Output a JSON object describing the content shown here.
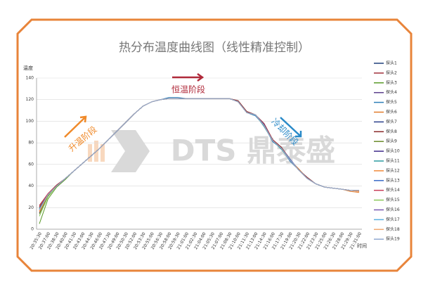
{
  "chart_data": {
    "type": "line",
    "title": "热分布温度曲线图（线性精准控制）",
    "y_label": "温度",
    "x_label": "时间",
    "annotations": [
      "升温阶段",
      "恒温阶段",
      "冷却阶段"
    ],
    "watermark": "DTS 鼎泰盛",
    "ylim": [
      0,
      140
    ],
    "yticks": [
      0,
      20,
      40,
      60,
      80,
      100,
      120,
      140
    ],
    "grid": true,
    "legend": "right",
    "categories": [
      "20:35:30",
      "20:37:00",
      "20:38:30",
      "20:40:00",
      "20:41:30",
      "20:43:00",
      "20:44:30",
      "20:46:00",
      "20:47:30",
      "20:49:00",
      "20:50:30",
      "20:52:00",
      "20:53:30",
      "20:55:00",
      "20:56:30",
      "20:58:00",
      "20:59:30",
      "21:01:00",
      "21:02:30",
      "21:04:00",
      "21:05:30",
      "21:07:00",
      "21:08:30",
      "21:10:00",
      "21:11:30",
      "21:13:00",
      "21:14:30",
      "21:16:00",
      "21:17:30",
      "21:19:00",
      "21:20:30",
      "21:22:00",
      "21:23:30",
      "21:25:00",
      "21:26:30",
      "21:28:00",
      "21:29:30",
      "21:31:00"
    ],
    "series": [
      {
        "name": "探头1",
        "color": "#1f3f7a",
        "values": [
          18,
          32,
          40,
          47,
          54,
          61,
          68,
          75,
          83,
          91,
          99,
          107,
          114,
          118,
          120,
          121,
          121,
          121,
          121,
          121,
          121,
          121,
          121,
          118,
          108,
          106,
          96,
          82,
          75,
          64,
          55,
          47,
          42,
          39,
          38,
          37,
          36,
          36
        ]
      },
      {
        "name": "探头2",
        "color": "#a0303a",
        "values": [
          22,
          33,
          41,
          47,
          54,
          61,
          68,
          75,
          83,
          91,
          99,
          107,
          114,
          118,
          120,
          121,
          121,
          121,
          121,
          121,
          121,
          121,
          121,
          118,
          109,
          106,
          98,
          83,
          76,
          65,
          55,
          47,
          42,
          39,
          38,
          37,
          36,
          35
        ]
      },
      {
        "name": "探头3",
        "color": "#5a9a2a",
        "values": [
          5,
          28,
          39,
          46,
          54,
          61,
          68,
          75,
          83,
          91,
          99,
          107,
          114,
          118,
          120,
          121,
          121,
          121,
          121,
          121,
          121,
          121,
          121,
          118,
          108,
          106,
          96,
          82,
          75,
          64,
          55,
          47,
          42,
          39,
          38,
          37,
          36,
          36
        ]
      },
      {
        "name": "探头4",
        "color": "#5b3f8c",
        "values": [
          15,
          31,
          40,
          47,
          54,
          61,
          68,
          75,
          83,
          91,
          99,
          107,
          114,
          118,
          120,
          121,
          121,
          121,
          121,
          121,
          121,
          121,
          121,
          118,
          108,
          106,
          97,
          82,
          75,
          64,
          55,
          47,
          42,
          39,
          38,
          37,
          36,
          36
        ]
      },
      {
        "name": "探头5",
        "color": "#2f7fb8",
        "values": [
          18,
          32,
          40,
          47,
          54,
          61,
          68,
          75,
          83,
          91,
          99,
          107,
          114,
          118,
          120,
          122,
          122,
          121,
          121,
          121,
          121,
          121,
          121,
          118,
          108,
          105,
          96,
          81,
          75,
          63,
          55,
          47,
          42,
          39,
          38,
          37,
          36,
          36
        ]
      },
      {
        "name": "探头6",
        "color": "#e07a2a",
        "values": [
          17,
          32,
          40,
          47,
          54,
          61,
          68,
          75,
          83,
          91,
          99,
          107,
          114,
          118,
          120,
          121,
          121,
          121,
          121,
          121,
          121,
          121,
          121,
          118,
          108,
          106,
          96,
          82,
          75,
          64,
          56,
          47,
          42,
          39,
          38,
          37,
          35,
          34
        ]
      },
      {
        "name": "探头7",
        "color": "#2a3f8a",
        "values": [
          18,
          32,
          40,
          47,
          54,
          61,
          68,
          75,
          83,
          91,
          99,
          107,
          114,
          118,
          120,
          121,
          121,
          121,
          121,
          121,
          121,
          121,
          121,
          118,
          108,
          106,
          96,
          82,
          75,
          64,
          55,
          47,
          42,
          39,
          38,
          37,
          36,
          36
        ]
      },
      {
        "name": "探头8",
        "color": "#8a2a2a",
        "values": [
          20,
          32,
          40,
          47,
          54,
          61,
          68,
          75,
          83,
          91,
          99,
          107,
          114,
          118,
          120,
          121,
          121,
          121,
          121,
          121,
          121,
          121,
          121,
          119,
          109,
          106,
          96,
          82,
          76,
          64,
          55,
          48,
          42,
          39,
          38,
          37,
          36,
          36
        ]
      },
      {
        "name": "探头9",
        "color": "#6a8a2a",
        "values": [
          14,
          31,
          40,
          47,
          54,
          61,
          68,
          75,
          83,
          91,
          99,
          107,
          114,
          118,
          120,
          121,
          121,
          121,
          121,
          121,
          121,
          121,
          121,
          118,
          108,
          106,
          96,
          82,
          75,
          64,
          55,
          47,
          42,
          39,
          38,
          37,
          36,
          36
        ]
      },
      {
        "name": "探头10",
        "color": "#3f2a8a",
        "values": [
          18,
          32,
          40,
          47,
          54,
          61,
          68,
          75,
          83,
          91,
          99,
          107,
          114,
          118,
          120,
          121,
          121,
          121,
          121,
          121,
          121,
          121,
          121,
          118,
          108,
          106,
          96,
          82,
          75,
          64,
          55,
          47,
          42,
          39,
          38,
          37,
          36,
          36
        ]
      },
      {
        "name": "探头11",
        "color": "#2a9aa0",
        "values": [
          19,
          32,
          40,
          47,
          54,
          61,
          68,
          75,
          83,
          91,
          99,
          107,
          114,
          118,
          120,
          121,
          121,
          121,
          121,
          121,
          121,
          121,
          121,
          118,
          108,
          106,
          95,
          82,
          74,
          64,
          55,
          47,
          42,
          39,
          38,
          37,
          36,
          36
        ]
      },
      {
        "name": "探头12",
        "color": "#f08a3a",
        "values": [
          16,
          32,
          40,
          47,
          54,
          61,
          68,
          75,
          83,
          91,
          99,
          107,
          114,
          118,
          120,
          121,
          121,
          121,
          121,
          121,
          121,
          121,
          121,
          118,
          108,
          106,
          96,
          82,
          75,
          64,
          55,
          47,
          42,
          39,
          38,
          37,
          36,
          35
        ]
      },
      {
        "name": "探头13",
        "color": "#3a6ac8",
        "values": [
          18,
          32,
          40,
          47,
          54,
          61,
          68,
          75,
          83,
          91,
          99,
          107,
          114,
          118,
          120,
          121,
          121,
          121,
          121,
          121,
          121,
          121,
          121,
          118,
          108,
          106,
          96,
          82,
          75,
          65,
          55,
          47,
          42,
          39,
          38,
          37,
          36,
          36
        ]
      },
      {
        "name": "探头14",
        "color": "#c8405a",
        "values": [
          21,
          33,
          40,
          47,
          54,
          61,
          68,
          75,
          83,
          91,
          99,
          107,
          114,
          118,
          120,
          121,
          121,
          121,
          121,
          121,
          121,
          121,
          121,
          118,
          108,
          106,
          96,
          82,
          75,
          64,
          55,
          47,
          42,
          39,
          38,
          37,
          36,
          36
        ]
      },
      {
        "name": "探头15",
        "color": "#8ac85a",
        "values": [
          12,
          30,
          40,
          47,
          54,
          61,
          68,
          75,
          83,
          91,
          99,
          107,
          114,
          118,
          120,
          121,
          121,
          121,
          121,
          121,
          121,
          121,
          121,
          118,
          108,
          106,
          96,
          82,
          75,
          64,
          55,
          47,
          42,
          39,
          38,
          37,
          36,
          36
        ]
      },
      {
        "name": "探头16",
        "color": "#7a5ab0",
        "values": [
          18,
          32,
          40,
          47,
          54,
          61,
          68,
          75,
          83,
          91,
          99,
          107,
          114,
          118,
          120,
          121,
          121,
          121,
          121,
          121,
          121,
          121,
          121,
          118,
          108,
          106,
          96,
          82,
          75,
          64,
          55,
          47,
          42,
          39,
          38,
          37,
          36,
          36
        ]
      },
      {
        "name": "探头17",
        "color": "#5ab0e0",
        "values": [
          18,
          32,
          40,
          47,
          54,
          61,
          68,
          75,
          83,
          91,
          99,
          107,
          114,
          118,
          120,
          121,
          121,
          121,
          121,
          121,
          121,
          121,
          121,
          118,
          108,
          106,
          96,
          82,
          75,
          64,
          55,
          47,
          42,
          39,
          38,
          37,
          36,
          36
        ]
      },
      {
        "name": "探头18",
        "color": "#f0a870",
        "values": [
          17,
          32,
          40,
          47,
          54,
          61,
          68,
          75,
          83,
          91,
          99,
          107,
          114,
          118,
          120,
          121,
          121,
          121,
          121,
          121,
          121,
          121,
          121,
          118,
          108,
          106,
          96,
          82,
          75,
          64,
          55,
          47,
          42,
          39,
          38,
          37,
          36,
          36
        ]
      },
      {
        "name": "探头19",
        "color": "#90a8d0",
        "values": [
          18,
          32,
          40,
          47,
          54,
          61,
          68,
          75,
          83,
          91,
          99,
          107,
          114,
          118,
          120,
          121,
          121,
          121,
          121,
          121,
          121,
          121,
          121,
          118,
          108,
          106,
          96,
          82,
          75,
          64,
          55,
          47,
          42,
          39,
          38,
          37,
          36,
          36
        ]
      }
    ]
  }
}
